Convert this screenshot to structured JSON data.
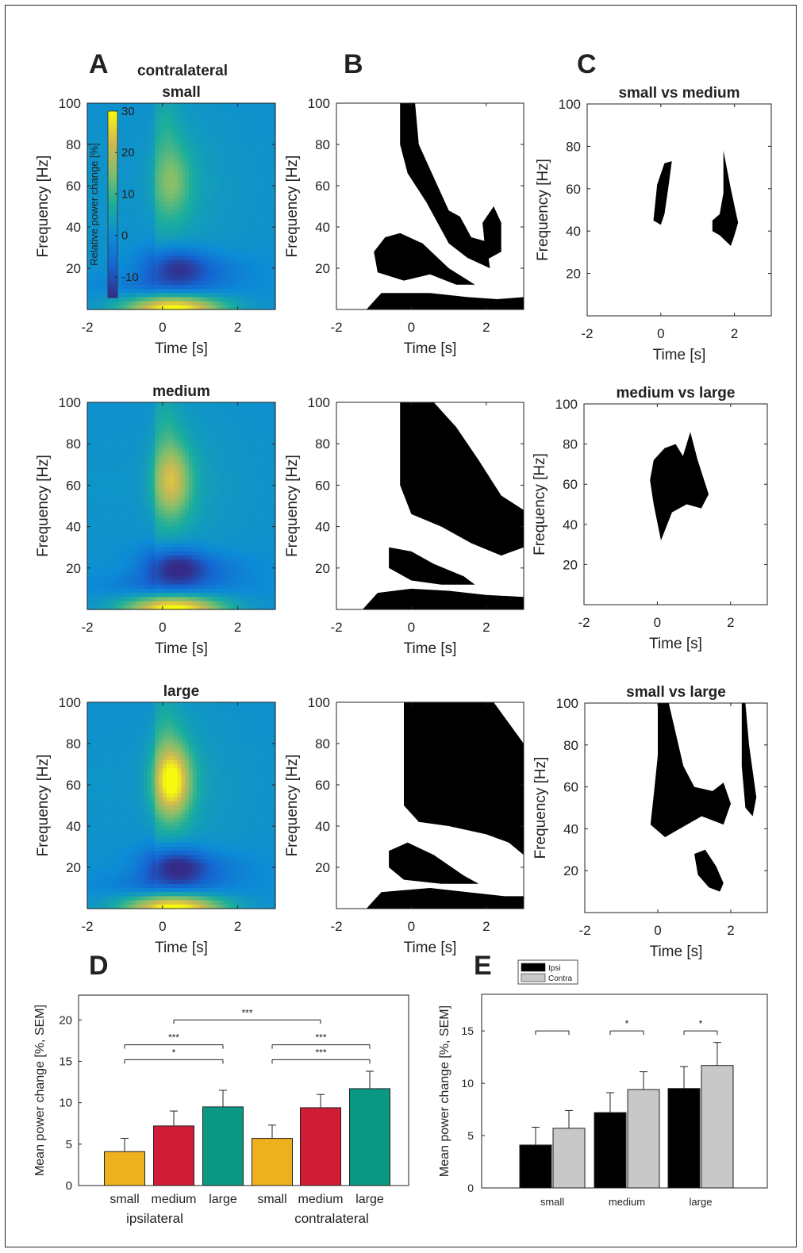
{
  "panel_labels": [
    "A",
    "B",
    "C",
    "D",
    "E"
  ],
  "colors": {
    "small": "#EDB120",
    "medium": "#D01C36",
    "large": "#0B9882",
    "ipsi": "#000000",
    "contra": "#C8C8C8",
    "mask": "#000000"
  },
  "colormap": [
    "#352A87",
    "#1565D1",
    "#0C8CD6",
    "#1BAE9C",
    "#7FBE6C",
    "#D1B950",
    "#F8FA0D"
  ],
  "chart_data": [
    {
      "type": "heatmap",
      "id": "A-small",
      "title": "small",
      "header": "contralateral",
      "xlabel": "Time [s]",
      "ylabel": "Frequency [Hz]",
      "xlim": [
        -2,
        3
      ],
      "ylim": [
        0,
        100
      ],
      "xticks": [
        "-2",
        "0",
        "2"
      ],
      "yticks": [
        "20",
        "40",
        "60",
        "80",
        "100"
      ],
      "colorbar": {
        "label": "Relative power change [%]",
        "ticks": [
          "30",
          "20",
          "10",
          "0",
          "-10"
        ],
        "range": [
          -15,
          30
        ]
      },
      "features": {
        "gamma_peak": 10,
        "beta_dip": -13,
        "low_freq": 30
      }
    },
    {
      "type": "heatmap",
      "id": "A-medium",
      "title": "medium",
      "xlabel": "Time [s]",
      "ylabel": "Frequency [Hz]",
      "xlim": [
        -2,
        3
      ],
      "ylim": [
        0,
        100
      ],
      "xticks": [
        "-2",
        "0",
        "2"
      ],
      "yticks": [
        "20",
        "40",
        "60",
        "80",
        "100"
      ],
      "features": {
        "gamma_peak": 18,
        "beta_dip": -15,
        "low_freq": 30
      }
    },
    {
      "type": "heatmap",
      "id": "A-large",
      "title": "large",
      "xlabel": "Time [s]",
      "ylabel": "Frequency [Hz]",
      "xlim": [
        -2,
        3
      ],
      "ylim": [
        0,
        100
      ],
      "xticks": [
        "-2",
        "0",
        "2"
      ],
      "yticks": [
        "20",
        "40",
        "60",
        "80",
        "100"
      ],
      "features": {
        "gamma_peak": 27,
        "beta_dip": -15,
        "low_freq": 30
      }
    },
    {
      "type": "heatmap",
      "id": "B-small",
      "title": "",
      "xlabel": "Time [s]",
      "ylabel": "Frequency [Hz]",
      "xlim": [
        -2,
        3
      ],
      "ylim": [
        0,
        100
      ],
      "xticks": [
        "-2",
        "0",
        "2"
      ],
      "yticks": [
        "20",
        "40",
        "60",
        "80",
        "100"
      ],
      "significant_regions": [
        {
          "points": [
            [
              -0.3,
              100
            ],
            [
              0.1,
              100
            ],
            [
              0.2,
              80
            ],
            [
              0.7,
              60
            ],
            [
              1.0,
              48
            ],
            [
              1.3,
              45
            ],
            [
              1.6,
              35
            ],
            [
              2.0,
              33
            ],
            [
              2.1,
              20
            ],
            [
              1.5,
              25
            ],
            [
              1.0,
              32
            ],
            [
              0.4,
              52
            ],
            [
              -0.1,
              66
            ],
            [
              -0.3,
              80
            ]
          ]
        },
        {
          "points": [
            [
              1.9,
              42
            ],
            [
              2.2,
              50
            ],
            [
              2.4,
              42
            ],
            [
              2.4,
              28
            ],
            [
              2.0,
              24
            ]
          ]
        },
        {
          "points": [
            [
              -1.0,
              28
            ],
            [
              -0.7,
              35
            ],
            [
              -0.3,
              37
            ],
            [
              0.3,
              32
            ],
            [
              1.0,
              20
            ],
            [
              1.7,
              12
            ],
            [
              1.2,
              12
            ],
            [
              0.5,
              17
            ],
            [
              -0.2,
              14
            ],
            [
              -0.9,
              18
            ]
          ]
        },
        {
          "points": [
            [
              -1.2,
              0
            ],
            [
              -0.8,
              8
            ],
            [
              0.5,
              8
            ],
            [
              1.5,
              6
            ],
            [
              2.3,
              5
            ],
            [
              3.0,
              6
            ],
            [
              3.0,
              0
            ]
          ]
        }
      ]
    },
    {
      "type": "heatmap",
      "id": "B-medium",
      "title": "",
      "xlabel": "Time [s]",
      "ylabel": "Frequency [Hz]",
      "xlim": [
        -2,
        3
      ],
      "ylim": [
        0,
        100
      ],
      "xticks": [
        "-2",
        "0",
        "2"
      ],
      "yticks": [
        "20",
        "40",
        "60",
        "80",
        "100"
      ],
      "significant_regions": [
        {
          "points": [
            [
              -0.3,
              100
            ],
            [
              0.6,
              100
            ],
            [
              1.2,
              88
            ],
            [
              1.8,
              72
            ],
            [
              2.4,
              55
            ],
            [
              3.0,
              48
            ],
            [
              3.0,
              30
            ],
            [
              2.4,
              26
            ],
            [
              1.6,
              32
            ],
            [
              0.8,
              40
            ],
            [
              0.0,
              46
            ],
            [
              -0.3,
              60
            ]
          ]
        },
        {
          "points": [
            [
              -0.6,
              30
            ],
            [
              0.0,
              28
            ],
            [
              0.6,
              22
            ],
            [
              1.4,
              16
            ],
            [
              1.7,
              12
            ],
            [
              0.8,
              12
            ],
            [
              0.0,
              14
            ],
            [
              -0.6,
              20
            ]
          ]
        },
        {
          "points": [
            [
              -1.3,
              0
            ],
            [
              -0.9,
              8
            ],
            [
              0.0,
              10
            ],
            [
              1.0,
              9
            ],
            [
              2.0,
              7
            ],
            [
              3.0,
              6
            ],
            [
              3.0,
              0
            ]
          ]
        }
      ]
    },
    {
      "type": "heatmap",
      "id": "B-large",
      "title": "",
      "xlabel": "Time [s]",
      "ylabel": "Frequency [Hz]",
      "xlim": [
        -2,
        3
      ],
      "ylim": [
        0,
        100
      ],
      "xticks": [
        "-2",
        "0",
        "2"
      ],
      "yticks": [
        "20",
        "40",
        "60",
        "80",
        "100"
      ],
      "significant_regions": [
        {
          "points": [
            [
              -0.2,
              100
            ],
            [
              2.2,
              100
            ],
            [
              3.0,
              80
            ],
            [
              3.0,
              26
            ],
            [
              2.6,
              32
            ],
            [
              2.0,
              36
            ],
            [
              1.0,
              40
            ],
            [
              0.2,
              42
            ],
            [
              -0.2,
              50
            ]
          ]
        },
        {
          "points": [
            [
              -0.6,
              28
            ],
            [
              -0.1,
              32
            ],
            [
              0.6,
              26
            ],
            [
              1.4,
              16
            ],
            [
              1.8,
              12
            ],
            [
              0.8,
              12
            ],
            [
              -0.2,
              14
            ],
            [
              -0.6,
              20
            ]
          ]
        },
        {
          "points": [
            [
              -1.2,
              0
            ],
            [
              -0.8,
              8
            ],
            [
              0.5,
              10
            ],
            [
              1.5,
              8
            ],
            [
              2.5,
              6
            ],
            [
              3.0,
              6
            ],
            [
              3.0,
              0
            ]
          ]
        }
      ]
    },
    {
      "type": "heatmap",
      "id": "C-small-medium",
      "title": "small vs medium",
      "xlabel": "Time [s]",
      "ylabel": "Frequency [Hz]",
      "xlim": [
        -2,
        3
      ],
      "ylim": [
        0,
        100
      ],
      "xticks": [
        "-2",
        "0",
        "2"
      ],
      "yticks": [
        "20",
        "40",
        "60",
        "80",
        "100"
      ],
      "significant_regions": [
        {
          "points": [
            [
              -0.2,
              45
            ],
            [
              -0.1,
              62
            ],
            [
              0.1,
              72
            ],
            [
              0.3,
              73
            ],
            [
              0.2,
              60
            ],
            [
              0.1,
              48
            ],
            [
              0.0,
              43
            ]
          ]
        },
        {
          "points": [
            [
              1.4,
              45
            ],
            [
              1.6,
              48
            ],
            [
              1.7,
              58
            ],
            [
              1.7,
              78
            ],
            [
              1.9,
              60
            ],
            [
              2.0,
              52
            ],
            [
              2.1,
              44
            ],
            [
              2.0,
              38
            ],
            [
              1.9,
              33
            ],
            [
              1.6,
              38
            ],
            [
              1.4,
              40
            ]
          ]
        }
      ]
    },
    {
      "type": "heatmap",
      "id": "C-medium-large",
      "title": "medium vs large",
      "xlabel": "Time [s]",
      "ylabel": "Frequency [Hz]",
      "xlim": [
        -2,
        3
      ],
      "ylim": [
        0,
        100
      ],
      "xticks": [
        "-2",
        "0",
        "2"
      ],
      "yticks": [
        "20",
        "40",
        "60",
        "80",
        "100"
      ],
      "significant_regions": [
        {
          "points": [
            [
              -0.2,
              62
            ],
            [
              -0.1,
              72
            ],
            [
              0.2,
              78
            ],
            [
              0.5,
              80
            ],
            [
              0.7,
              74
            ],
            [
              0.9,
              86
            ],
            [
              1.1,
              72
            ],
            [
              1.4,
              55
            ],
            [
              1.2,
              48
            ],
            [
              0.8,
              50
            ],
            [
              0.4,
              46
            ],
            [
              0.1,
              32
            ],
            [
              -0.1,
              50
            ]
          ]
        }
      ]
    },
    {
      "type": "heatmap",
      "id": "C-small-large",
      "title": "small vs large",
      "xlabel": "Time [s]",
      "ylabel": "Frequency [Hz]",
      "xlim": [
        -2,
        3
      ],
      "ylim": [
        0,
        100
      ],
      "xticks": [
        "-2",
        "0",
        "2"
      ],
      "yticks": [
        "20",
        "40",
        "60",
        "80",
        "100"
      ],
      "significant_regions": [
        {
          "points": [
            [
              0.0,
              100
            ],
            [
              0.3,
              100
            ],
            [
              0.5,
              85
            ],
            [
              0.7,
              70
            ],
            [
              1.0,
              60
            ],
            [
              1.5,
              58
            ],
            [
              1.8,
              62
            ],
            [
              2.0,
              52
            ],
            [
              1.8,
              42
            ],
            [
              1.2,
              46
            ],
            [
              0.6,
              40
            ],
            [
              0.2,
              36
            ],
            [
              -0.2,
              42
            ],
            [
              -0.1,
              58
            ],
            [
              0.0,
              75
            ]
          ]
        },
        {
          "points": [
            [
              2.3,
              100
            ],
            [
              2.4,
              100
            ],
            [
              2.5,
              80
            ],
            [
              2.7,
              55
            ],
            [
              2.6,
              46
            ],
            [
              2.4,
              50
            ],
            [
              2.3,
              70
            ]
          ]
        },
        {
          "points": [
            [
              1.0,
              28
            ],
            [
              1.3,
              30
            ],
            [
              1.6,
              22
            ],
            [
              1.8,
              14
            ],
            [
              1.7,
              10
            ],
            [
              1.4,
              12
            ],
            [
              1.1,
              18
            ]
          ]
        }
      ]
    },
    {
      "type": "bar",
      "id": "D",
      "ylabel": "Mean power change [%, SEM]",
      "ylim": [
        0,
        23
      ],
      "yticks": [
        "0",
        "5",
        "10",
        "15",
        "20"
      ],
      "categories": [
        "small",
        "medium",
        "large",
        "small",
        "medium",
        "large"
      ],
      "groups": [
        "ipsilateral",
        "contralateral"
      ],
      "values": [
        4.1,
        7.2,
        9.5,
        5.7,
        9.4,
        11.7
      ],
      "errors": [
        1.6,
        1.8,
        2.0,
        1.6,
        1.6,
        2.1
      ],
      "significance": [
        {
          "from": 0,
          "to": 2,
          "y": 15.2,
          "label": "*"
        },
        {
          "from": 0,
          "to": 2,
          "y": 17.0,
          "label": "***"
        },
        {
          "from": 3,
          "to": 5,
          "y": 15.2,
          "label": "***"
        },
        {
          "from": 3,
          "to": 5,
          "y": 17.0,
          "label": "***"
        },
        {
          "from": 1,
          "to": 4,
          "y": 20.0,
          "label": "***"
        }
      ]
    },
    {
      "type": "bar",
      "id": "E",
      "ylabel": "Mean power change [%, SEM]",
      "ylim": [
        0,
        18.5
      ],
      "yticks": [
        "0",
        "5",
        "10",
        "15"
      ],
      "categories": [
        "small",
        "medium",
        "large"
      ],
      "series": [
        {
          "name": "Ipsi",
          "values": [
            4.1,
            7.2,
            9.5
          ],
          "errors": [
            1.7,
            1.9,
            2.1
          ]
        },
        {
          "name": "Contra",
          "values": [
            5.7,
            9.4,
            11.7
          ],
          "errors": [
            1.7,
            1.7,
            2.2
          ]
        }
      ],
      "significance": [
        {
          "group": 0,
          "y": 15.0,
          "label": ""
        },
        {
          "group": 1,
          "y": 15.0,
          "label": "*"
        },
        {
          "group": 2,
          "y": 15.0,
          "label": "*"
        }
      ],
      "legend": "top-left"
    }
  ]
}
